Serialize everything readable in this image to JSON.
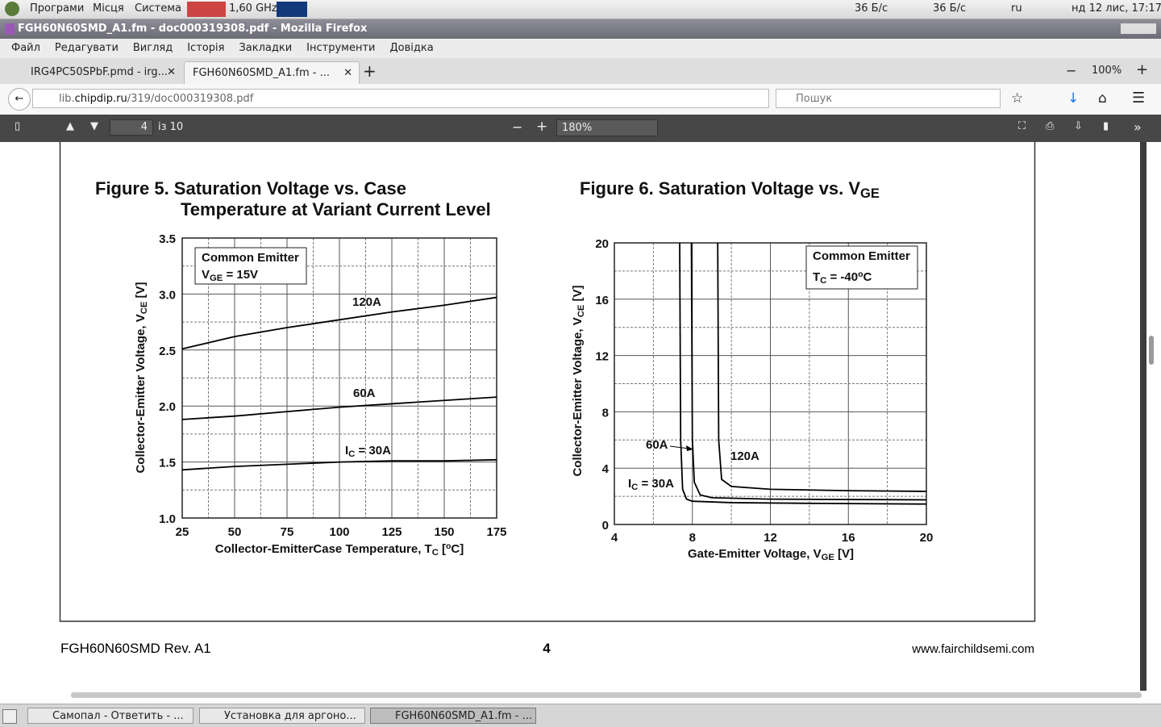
{
  "top_panel": {
    "menu": [
      "Програми",
      "Місця",
      "Система"
    ],
    "cpu": "1,60 GHz",
    "net_down": "36 Б/с",
    "net_up": "36 Б/с",
    "lang": "ru",
    "clock": "нд 12 лис, 17:17"
  },
  "window_title": "FGH60N60SMD_A1.fm - doc000319308.pdf - Mozilla Firefox",
  "menubar": [
    "Файл",
    "Редагувати",
    "Вигляд",
    "Історія",
    "Закладки",
    "Інструменти",
    "Довідка"
  ],
  "tabs": [
    "IRG4PC50SPbF.pmd - irg...",
    "FGH60N60SMD_A1.fm - ..."
  ],
  "zoom_level": "100%",
  "url": {
    "pre": "lib.",
    "host": "chipdip.ru",
    "path": "/319/doc000319308.pdf"
  },
  "search_placeholder": "Пошук",
  "pdf_toolbar": {
    "page": "4",
    "page_count": "із 10",
    "scale": "180%"
  },
  "figures": [
    {
      "title": [
        [
          {
            "t": "Figure 5. Saturation Voltage vs. Case"
          }
        ],
        [
          {
            "t": "Temperature at Variant Current Level"
          }
        ]
      ],
      "chart": {
        "type": "line",
        "xlabel": [
          {
            "t": "Collector-EmitterCase Temperature, T"
          },
          {
            "sub": "C"
          },
          {
            "t": " ["
          },
          {
            "sup": "o"
          },
          {
            "t": "C]"
          }
        ],
        "ylabel": [
          {
            "t": "Collector-Emitter Voltage, V"
          },
          {
            "sub": "CE"
          },
          {
            "t": " [V]"
          }
        ],
        "xlim": [
          25,
          175
        ],
        "xticks": [
          25,
          50,
          75,
          100,
          125,
          150,
          175
        ],
        "ylim": [
          1,
          3.5
        ],
        "yticks": [
          {
            "value": 1,
            "label": "1.0"
          },
          1.5,
          {
            "value": 2,
            "label": "2.0"
          },
          2.5,
          {
            "value": 3,
            "label": "3.0"
          },
          3.5
        ],
        "grid": true,
        "color": "#000000",
        "legend_box": [
          [
            {
              "t": "Common Emitter"
            }
          ],
          [
            {
              "t": "V"
            },
            {
              "sub": "GE"
            },
            {
              "t": " = 15V"
            }
          ]
        ],
        "series": [
          {
            "name": [
              {
                "t": "120A"
              }
            ],
            "x": [
              25,
              50,
              75,
              100,
              125,
              150,
              175
            ],
            "values": [
              2.51,
              2.62,
              2.7,
              2.77,
              2.84,
              2.9,
              2.97
            ]
          },
          {
            "name": [
              {
                "t": "60A"
              }
            ],
            "x": [
              25,
              50,
              75,
              100,
              125,
              150,
              175
            ],
            "values": [
              1.88,
              1.91,
              1.95,
              1.99,
              2.02,
              2.05,
              2.08
            ]
          },
          {
            "name": [
              {
                "t": "I"
              },
              {
                "sub": "C"
              },
              {
                "t": " = 30A"
              }
            ],
            "x": [
              25,
              50,
              75,
              100,
              125,
              150,
              175
            ],
            "values": [
              1.43,
              1.46,
              1.48,
              1.5,
              1.51,
              1.51,
              1.52
            ]
          }
        ]
      }
    },
    {
      "title": [
        [
          {
            "t": "Figure 6. Saturation Voltage vs. V"
          },
          {
            "sub": "GE"
          }
        ]
      ],
      "chart": {
        "type": "line",
        "xlabel": [
          {
            "t": "Gate-Emitter Voltage, V"
          },
          {
            "sub": "GE"
          },
          {
            "t": " [V]"
          }
        ],
        "ylabel": [
          {
            "t": "Collector-Emitter Voltage, V"
          },
          {
            "sub": "CE"
          },
          {
            "t": " [V]"
          }
        ],
        "xlim": [
          4,
          20
        ],
        "xticks": [
          4,
          8,
          12,
          16,
          20
        ],
        "ylim": [
          0,
          20
        ],
        "yticks": [
          0,
          4,
          8,
          12,
          16,
          20
        ],
        "grid": true,
        "color": "#000000",
        "legend_box": [
          [
            {
              "t": "Common Emitter"
            }
          ],
          [
            {
              "t": "T"
            },
            {
              "sub": "C"
            },
            {
              "t": " = -40"
            },
            {
              "sup": "o"
            },
            {
              "t": "C"
            }
          ]
        ],
        "series": [
          {
            "name": [
              {
                "t": "I"
              },
              {
                "sub": "C"
              },
              {
                "t": " = 30A"
              }
            ],
            "x": [
              7.35,
              7.4,
              7.5,
              7.7,
              8,
              10,
              14,
              20
            ],
            "values": [
              20,
              6,
              2.5,
              1.8,
              1.65,
              1.55,
              1.5,
              1.45
            ]
          },
          {
            "name": [
              {
                "t": "60A"
              }
            ],
            "x": [
              7.95,
              8,
              8.1,
              8.4,
              9,
              12,
              20
            ],
            "values": [
              20,
              6,
              3,
              2.1,
              1.9,
              1.8,
              1.75
            ]
          },
          {
            "name": [
              {
                "t": "120A"
              }
            ],
            "x": [
              9.3,
              9.35,
              9.5,
              10,
              12,
              16,
              20
            ],
            "values": [
              20,
              6,
              3.2,
              2.7,
              2.5,
              2.4,
              2.35
            ]
          }
        ]
      }
    }
  ],
  "footer": {
    "left": "FGH60N60SMD Rev. A1",
    "page": "4",
    "right": "www.fairchildsemi.com"
  },
  "taskbar": [
    "Самопал - Ответить - ...",
    "Установка для аргоно...",
    "FGH60N60SMD_A1.fm - ..."
  ]
}
